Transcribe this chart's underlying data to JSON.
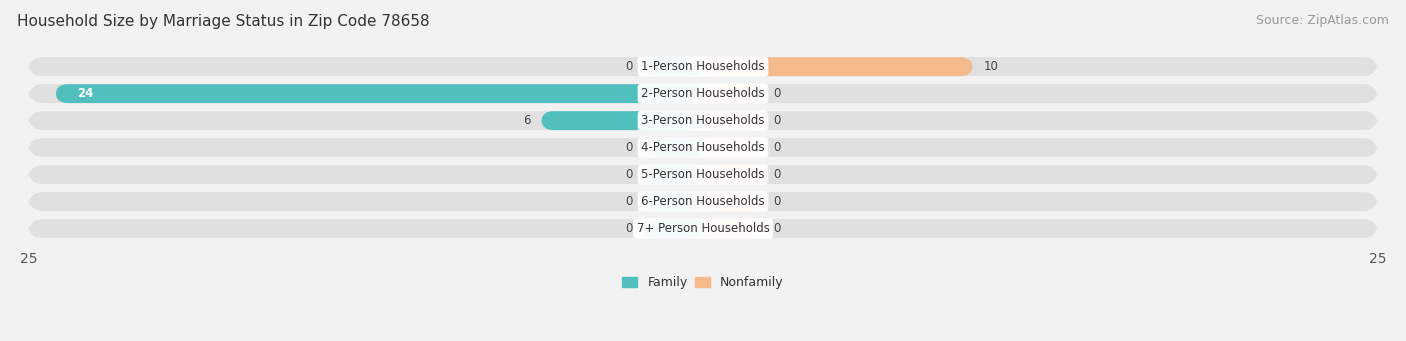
{
  "title": "Household Size by Marriage Status in Zip Code 78658",
  "source": "Source: ZipAtlas.com",
  "categories": [
    "1-Person Households",
    "2-Person Households",
    "3-Person Households",
    "4-Person Households",
    "5-Person Households",
    "6-Person Households",
    "7+ Person Households"
  ],
  "family_values": [
    0,
    24,
    6,
    0,
    0,
    0,
    0
  ],
  "nonfamily_values": [
    10,
    0,
    0,
    0,
    0,
    0,
    0
  ],
  "family_color": "#52BFBF",
  "nonfamily_color": "#F5BA8C",
  "xlim_left": -25,
  "xlim_right": 25,
  "background_color": "#f2f2f2",
  "bar_bg_color": "#e0e0e0",
  "bar_height": 0.7,
  "title_fontsize": 11,
  "source_fontsize": 9,
  "label_fontsize": 8.5,
  "tick_fontsize": 10,
  "min_bar_display": 2.0,
  "zero_stub_family": 2.2,
  "zero_stub_nonfamily": 2.2
}
